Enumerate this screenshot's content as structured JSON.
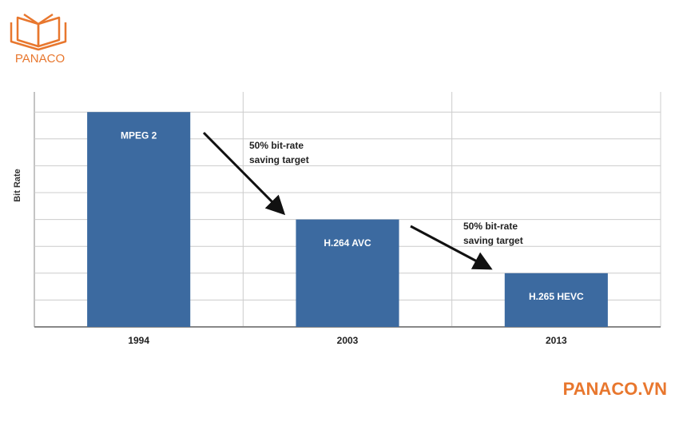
{
  "logo": {
    "text": "PANACO"
  },
  "footer": {
    "text": "PANACO.VN"
  },
  "chart_data": {
    "type": "bar",
    "y_label": "Bit Rate",
    "categories": [
      "1994",
      "2003",
      "2013"
    ],
    "values": [
      8,
      4,
      2
    ],
    "bar_labels": [
      "MPEG 2",
      "H.264 AVC",
      "H.265 HEVC"
    ],
    "color": "#3c6aa0",
    "ylim": [
      0,
      8.75
    ],
    "yticks": [
      0,
      1,
      2,
      3,
      4,
      5,
      6,
      7,
      8
    ],
    "grid": true,
    "annotations": [
      {
        "lines": [
          "50% bit-rate",
          "saving target"
        ]
      },
      {
        "lines": [
          "50% bit-rate",
          "saving target"
        ]
      }
    ]
  }
}
